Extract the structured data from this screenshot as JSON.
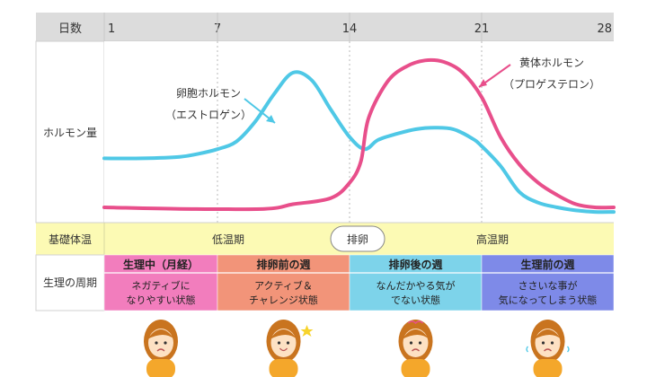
{
  "chart_data": {
    "type": "line",
    "x_header": "日数",
    "x_ticks": [
      1,
      7,
      14,
      21,
      28
    ],
    "xlim": [
      1,
      28
    ],
    "y_header": "ホルモン量",
    "series": [
      {
        "name": "卵胞ホルモン",
        "name_sub": "（エストロゲン）",
        "color": "#4fc8e6",
        "points": [
          [
            1,
            42
          ],
          [
            3,
            42
          ],
          [
            5,
            43
          ],
          [
            6,
            45
          ],
          [
            7,
            48
          ],
          [
            8,
            53
          ],
          [
            9,
            66
          ],
          [
            10,
            84
          ],
          [
            11,
            98
          ],
          [
            12,
            93
          ],
          [
            13,
            74
          ],
          [
            14,
            56
          ],
          [
            14.8,
            48
          ],
          [
            15.5,
            54
          ],
          [
            16.5,
            58
          ],
          [
            17.5,
            61
          ],
          [
            18.5,
            62
          ],
          [
            19.5,
            61
          ],
          [
            20.5,
            55
          ],
          [
            21,
            50
          ],
          [
            22,
            37
          ],
          [
            23,
            20
          ],
          [
            24,
            13
          ],
          [
            25,
            10
          ],
          [
            26,
            8
          ],
          [
            27,
            7
          ],
          [
            28,
            7
          ]
        ]
      },
      {
        "name": "黄体ホルモン",
        "name_sub": "（プロゲステロン）",
        "color": "#e84f8b",
        "points": [
          [
            1,
            10
          ],
          [
            5,
            9
          ],
          [
            9.5,
            9
          ],
          [
            11,
            12
          ],
          [
            13,
            16
          ],
          [
            14,
            26
          ],
          [
            14.6,
            40
          ],
          [
            15,
            68
          ],
          [
            16,
            92
          ],
          [
            17,
            102
          ],
          [
            18,
            106
          ],
          [
            19,
            105
          ],
          [
            20,
            98
          ],
          [
            21,
            82
          ],
          [
            22,
            56
          ],
          [
            23,
            38
          ],
          [
            24,
            26
          ],
          [
            25,
            18
          ],
          [
            26,
            12
          ],
          [
            27,
            10
          ],
          [
            28,
            10
          ]
        ]
      }
    ],
    "temperature_row": {
      "label": "基礎体温",
      "low": "低温期",
      "ovulation": "排卵",
      "high": "高温期",
      "color": "#fcfab4"
    },
    "phase_row": {
      "label": "生理の周期",
      "phases": [
        {
          "title": "生理中（月経）",
          "desc1": "ネガティブに",
          "desc2": "なりやすい状態",
          "color": "#f27dbd",
          "from": 1,
          "to": 7
        },
        {
          "title": "排卵前の週",
          "desc1": "アクティブ＆",
          "desc2": "チャレンジ状態",
          "color": "#f29479",
          "from": 7,
          "to": 14
        },
        {
          "title": "排卵後の週",
          "desc1": "なんだかやる気が",
          "desc2": "でない状態",
          "color": "#7dd3ea",
          "from": 14,
          "to": 21
        },
        {
          "title": "生理前の週",
          "desc1": "ささいな事が",
          "desc2": "気になってしまう状態",
          "color": "#7e8ae8",
          "from": 21,
          "to": 28
        }
      ]
    }
  }
}
